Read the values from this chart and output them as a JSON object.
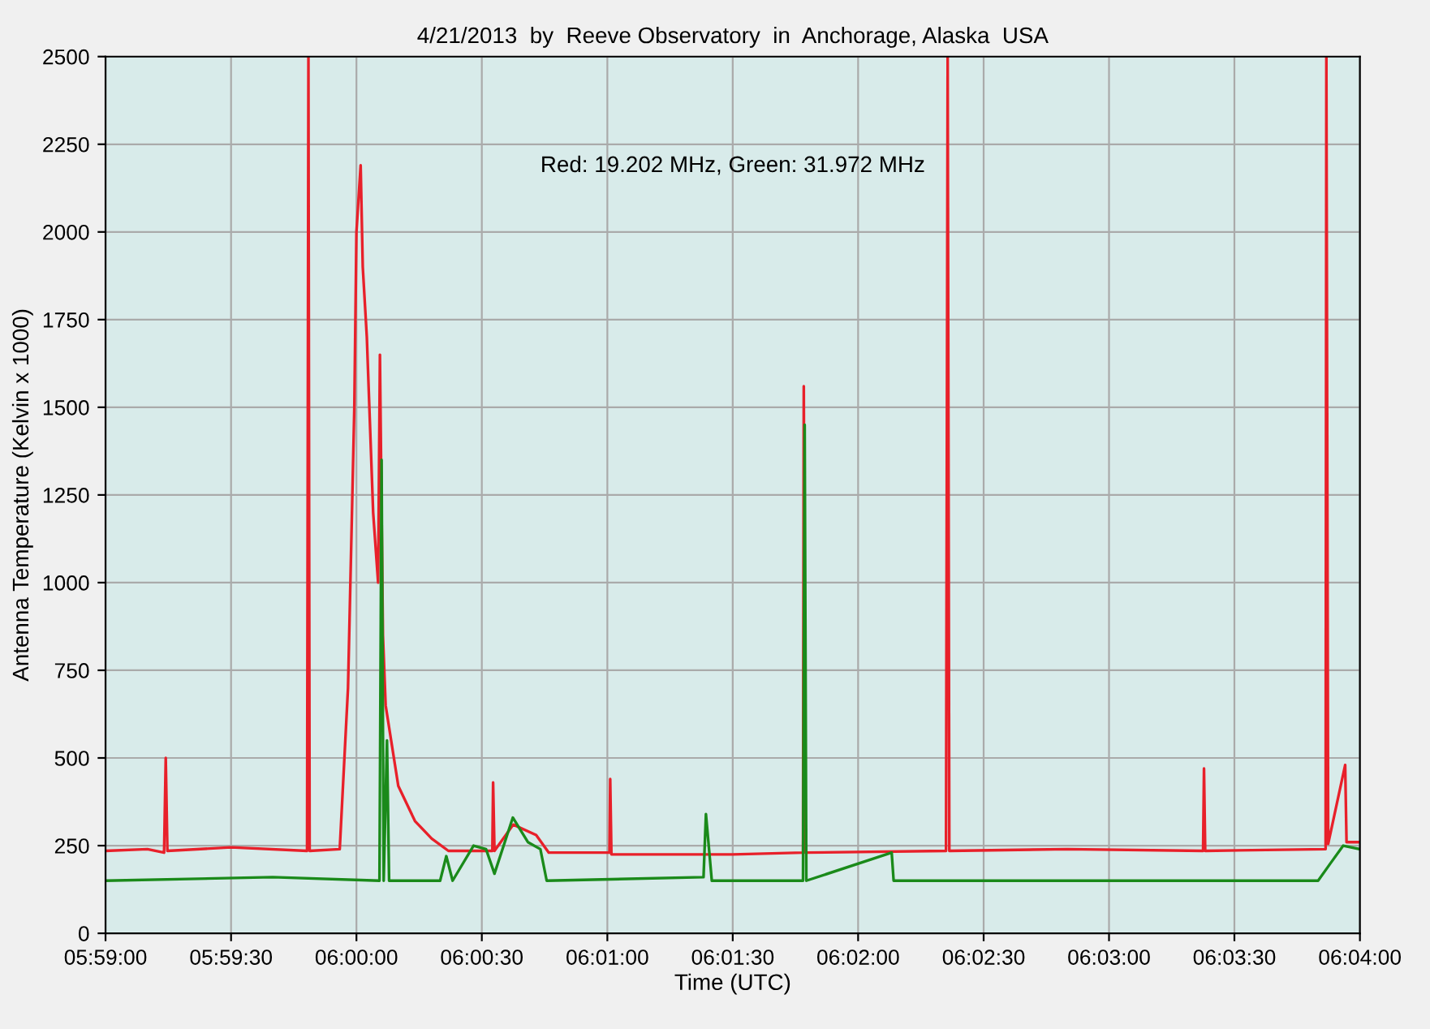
{
  "chart_data": {
    "type": "line",
    "title": "4/21/2013  by  Reeve Observatory  in  Anchorage, Alaska  USA",
    "xlabel": "Time (UTC)",
    "ylabel": "Antenna Temperature (Kelvin x 1000)",
    "annotations": [
      "Red: 19.202 MHz, Green: 31.972 MHz"
    ],
    "xlim": [
      5.98333,
      6.06667
    ],
    "xticks": [
      {
        "value": 5.98333,
        "label": "05:59:00"
      },
      {
        "value": 5.99167,
        "label": "05:59:30"
      },
      {
        "value": 6.0,
        "label": "06:00:00"
      },
      {
        "value": 6.00833,
        "label": "06:00:30"
      },
      {
        "value": 6.01667,
        "label": "06:01:00"
      },
      {
        "value": 6.025,
        "label": "06:01:30"
      },
      {
        "value": 6.03333,
        "label": "06:02:00"
      },
      {
        "value": 6.04167,
        "label": "06:02:30"
      },
      {
        "value": 6.05,
        "label": "06:03:00"
      },
      {
        "value": 6.05833,
        "label": "06:03:30"
      },
      {
        "value": 6.06667,
        "label": "06:04:00"
      }
    ],
    "ylim": [
      0,
      2500
    ],
    "yticks": [
      0,
      250,
      500,
      750,
      1000,
      1250,
      1500,
      1750,
      2000,
      2250,
      2500
    ],
    "grid": true,
    "legend": false,
    "marker": "none",
    "line_style": "solid",
    "series": [
      {
        "color": "#e8202a",
        "x": [
          5.98333,
          5.98611,
          5.98722,
          5.98733,
          5.98744,
          5.99167,
          5.99672,
          5.99681,
          5.99689,
          5.99889,
          5.99944,
          5.99986,
          6.0,
          6.00028,
          6.00042,
          6.00069,
          6.00111,
          6.00144,
          6.00156,
          6.00176,
          6.00194,
          6.00278,
          6.00389,
          6.005,
          6.00611,
          6.00903,
          6.00908,
          6.00917,
          6.01042,
          6.01194,
          6.01278,
          6.01681,
          6.01686,
          6.01694,
          6.025,
          6.02967,
          6.02972,
          6.02983,
          6.03917,
          6.03928,
          6.03939,
          6.04722,
          6.05625,
          6.05631,
          6.05639,
          6.06439,
          6.06444,
          6.06456,
          6.06569,
          6.06578,
          6.06667
        ],
        "values": [
          235,
          240,
          230,
          500,
          235,
          245,
          235,
          2500,
          235,
          240,
          700,
          1500,
          2000,
          2190,
          1900,
          1700,
          1200,
          1000,
          1650,
          850,
          650,
          420,
          320,
          270,
          235,
          235,
          430,
          235,
          310,
          280,
          230,
          230,
          440,
          225,
          225,
          230,
          1560,
          230,
          235,
          2500,
          235,
          240,
          235,
          470,
          235,
          240,
          2500,
          255,
          480,
          260,
          260
        ]
      },
      {
        "color": "#1a8a1a",
        "x": [
          5.98333,
          5.99444,
          6.00153,
          6.00167,
          6.00181,
          6.00203,
          6.00217,
          6.00556,
          6.00597,
          6.00639,
          6.00778,
          6.00861,
          6.00917,
          6.01039,
          6.01139,
          6.01222,
          6.01264,
          6.02306,
          6.02322,
          6.02361,
          6.02967,
          6.02978,
          6.02989,
          6.03556,
          6.03569,
          6.06389,
          6.06472,
          6.06556,
          6.06667
        ],
        "values": [
          150,
          160,
          150,
          1350,
          150,
          550,
          150,
          150,
          220,
          150,
          250,
          240,
          170,
          330,
          260,
          240,
          150,
          160,
          340,
          150,
          150,
          1450,
          150,
          230,
          150,
          150,
          200,
          250,
          240
        ]
      }
    ]
  }
}
